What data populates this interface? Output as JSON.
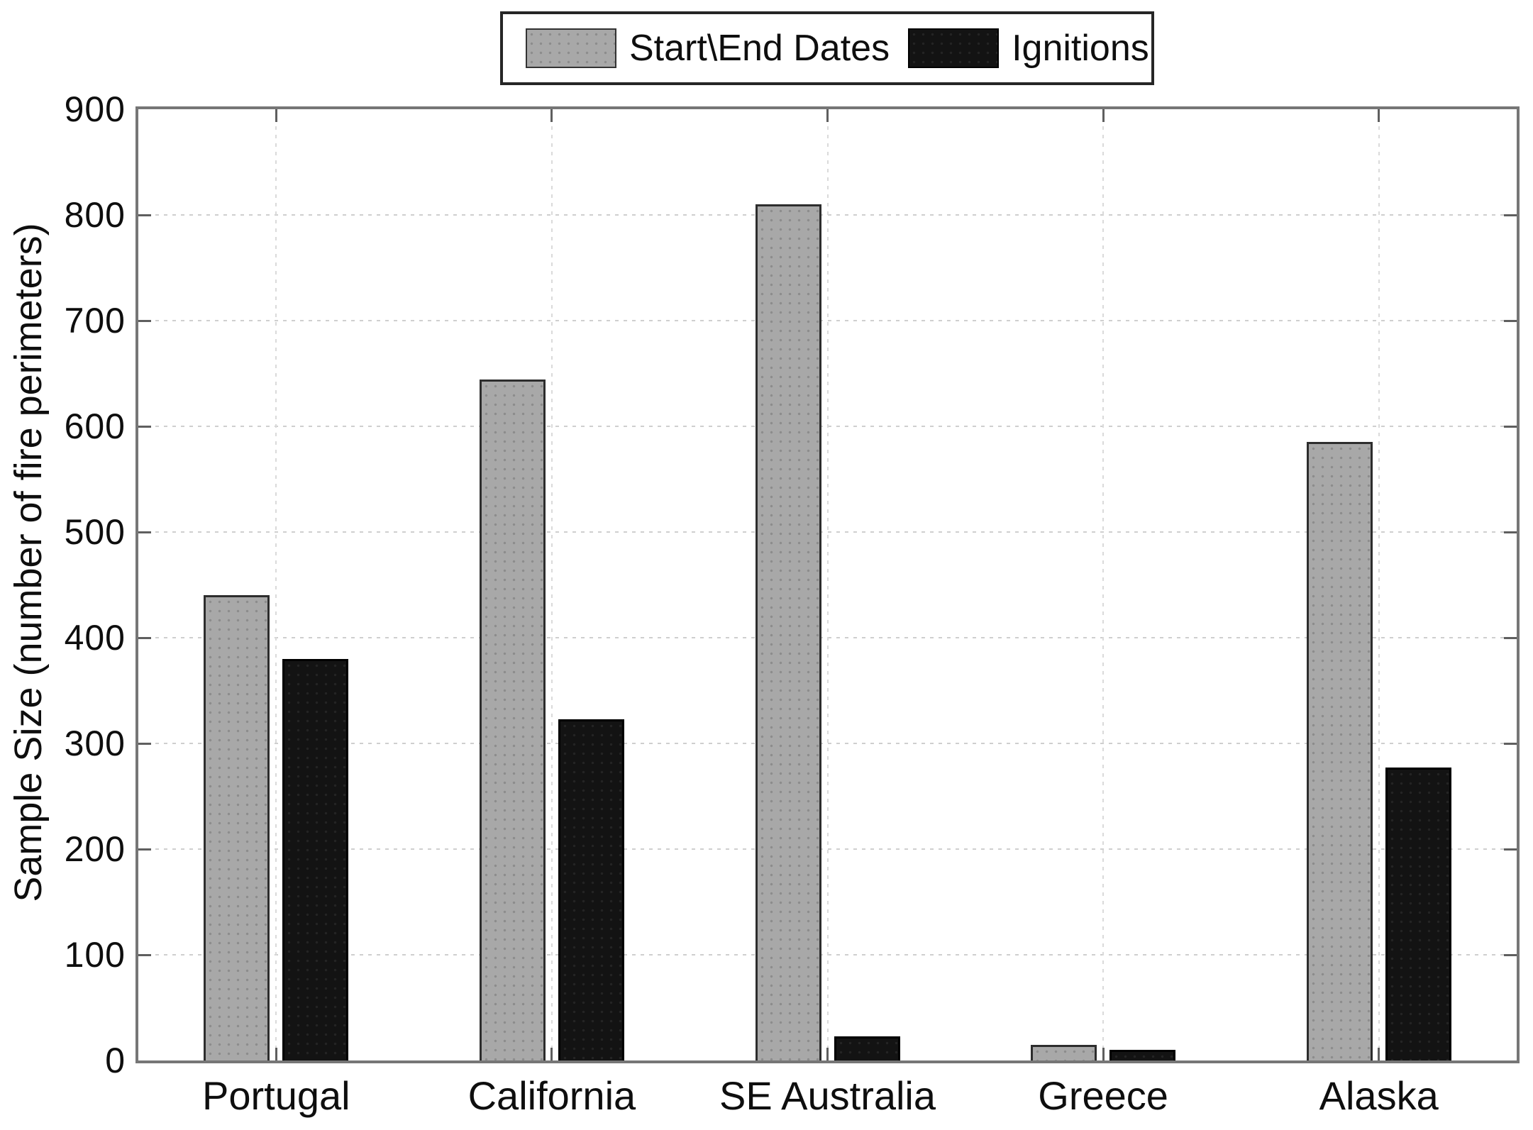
{
  "chart_data": {
    "type": "bar",
    "title": "",
    "categories": [
      "Portugal",
      "California",
      "SE Australia",
      "Greece",
      "Alaska"
    ],
    "series": [
      {
        "name": "Start\\End Dates",
        "color": "#a8a8a8",
        "values": [
          440,
          644,
          810,
          15,
          585
        ]
      },
      {
        "name": "Ignitions",
        "color": "#131313",
        "values": [
          380,
          323,
          23,
          10,
          277
        ]
      }
    ],
    "xlabel": "",
    "ylabel": "Sample Size (number of fire perimeters)",
    "ylim": [
      0,
      900
    ],
    "yticks": [
      0,
      100,
      200,
      300,
      400,
      500,
      600,
      700,
      800,
      900
    ],
    "grid": "dotted horizontal and vertical gridlines",
    "legend_position": "top-center",
    "colors": {
      "axis_box": "#767676",
      "tick": "#5f5f5f",
      "gridline": "#cfcfcf",
      "background": "#ffffff"
    }
  }
}
